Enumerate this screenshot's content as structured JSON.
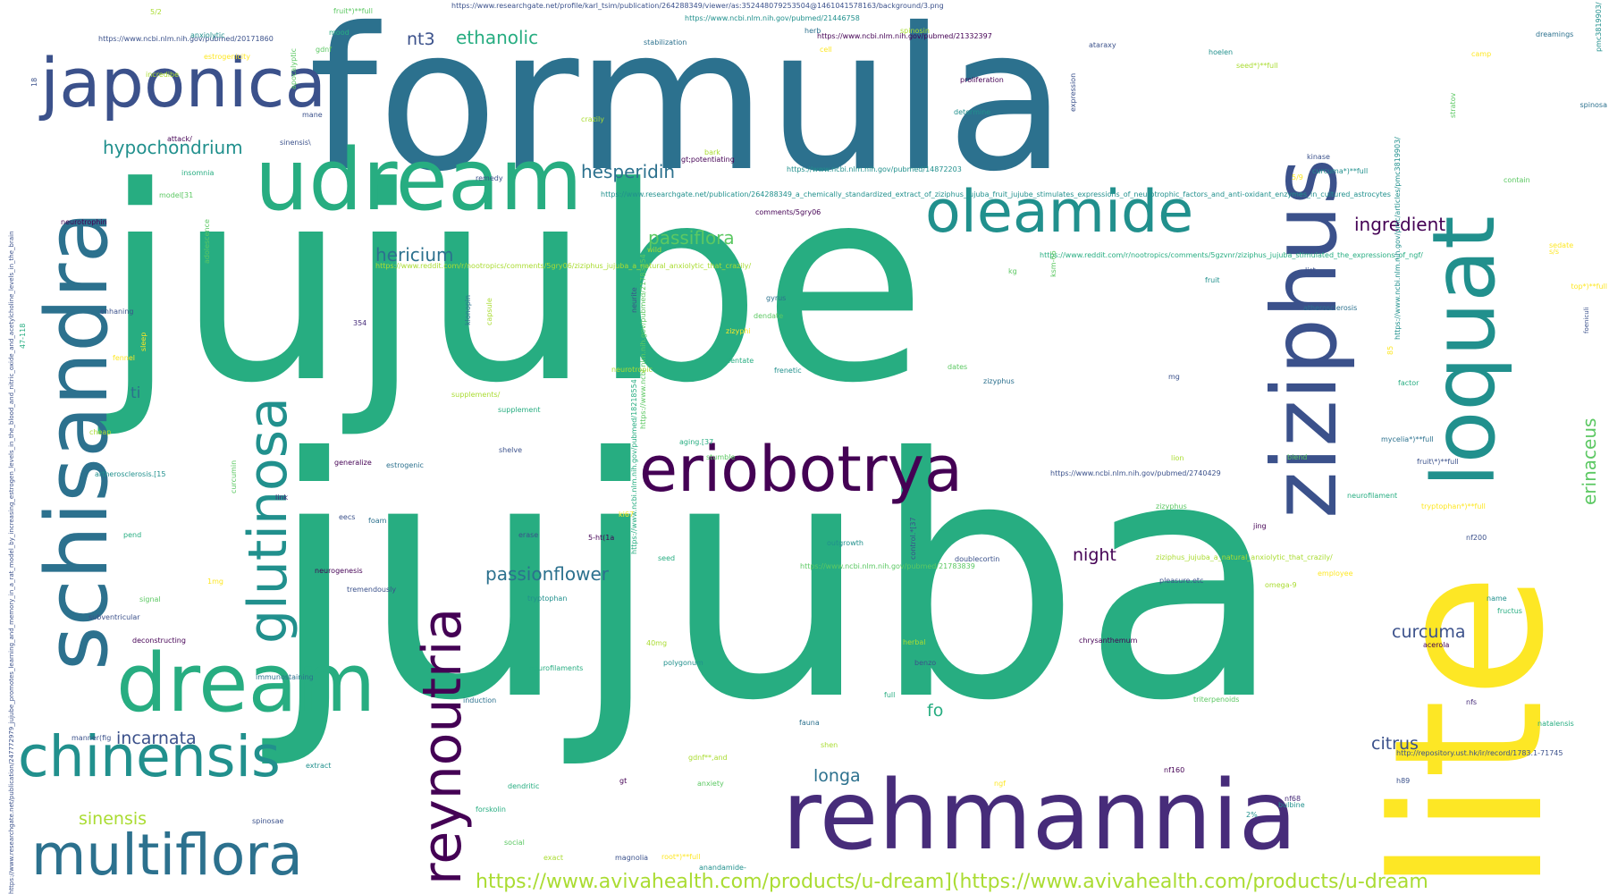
{
  "colors": {
    "background": "#ffffff",
    "palette": [
      "#440154",
      "#472c7a",
      "#3b518b",
      "#2c718e",
      "#21908d",
      "#27ad81",
      "#5cc863",
      "#aadc32",
      "#fde725"
    ]
  },
  "words": [
    {
      "text": "jujube"
    },
    {
      "text": "jujuba"
    },
    {
      "text": "formula"
    },
    {
      "text": "lite"
    },
    {
      "text": "ziziphus"
    },
    {
      "text": "loquat"
    },
    {
      "text": "schisandra"
    },
    {
      "text": "udream"
    },
    {
      "text": "japonica"
    },
    {
      "text": "rehmannia"
    },
    {
      "text": "eriobotrya"
    },
    {
      "text": "oleamide"
    },
    {
      "text": "reynoutria"
    },
    {
      "text": "glutinosa"
    },
    {
      "text": "dream"
    },
    {
      "text": "chinensis"
    },
    {
      "text": "multiflora"
    },
    {
      "text": "https://www.avivahealth.com/products/u-dream](https://www.avivahealth.com/products/u-dream"
    },
    {
      "text": "hypochondrium"
    },
    {
      "text": "passionflower"
    },
    {
      "text": "hesperidin"
    },
    {
      "text": "ethanolic"
    },
    {
      "text": "nt3"
    },
    {
      "text": "hericium"
    },
    {
      "text": "passiflora"
    },
    {
      "text": "ingredient"
    },
    {
      "text": "erinaceus"
    },
    {
      "text": "incarnata"
    },
    {
      "text": "sinensis"
    },
    {
      "text": "longa"
    },
    {
      "text": "curcuma"
    },
    {
      "text": "citrus"
    },
    {
      "text": "night"
    },
    {
      "text": "fo"
    },
    {
      "text": "ti"
    },
    {
      "text": "https://www.researchgate.net/profile/karl_tsim/publication/264288349/viewer/as:352448079253504@1461041578163/background/3.png"
    },
    {
      "text": "https://www.ncbi.nlm.nih.gov/pubmed/21446758"
    },
    {
      "text": "https://www.ncbi.nlm.nih.gov/pubmed/20171860"
    },
    {
      "text": "https://www.ncbi.nlm.nih.gov/pubmed/21332397"
    },
    {
      "text": "https://www.ncbi.nlm.nih.gov/pubmed/14872203"
    },
    {
      "text": "https://www.researchgate.net/publication/264288349_a_chemically_standardized_extract_of_ziziphus_jujuba_fruit_jujube_stimulates_expressions_of_neurotrophic_factors_and_anti-oxidant_enzymes_in_cultured_astrocytes"
    },
    {
      "text": "https://www.reddit.com/r/nootropics/comments/5gzvnr/ziziphus_jujuba_stimulated_the_expressions_of_ngf/"
    },
    {
      "text": "https://www.reddit.com/r/nootropics/comments/5gry06/ziziphus_jujuba_a_natural_anxiolytic_that_crazily/"
    },
    {
      "text": "https://www.ncbi.nlm.nih.gov/pubmed/2740429"
    },
    {
      "text": "https://www.ncbi.nlm.nih.gov/pubmed/21783839"
    },
    {
      "text": "ziziphus_jujuba_a_natural_anxiolytic_that_crazily/"
    },
    {
      "text": "http://repository.ust.hk/ir/record/1783.1-71745"
    },
    {
      "text": "https://www.ncbi.nlm.nih.gov/pmc/articles/pmc3819903/"
    },
    {
      "text": "https://www.ncbi.nlm.nih.gov/pubmed/18218554"
    },
    {
      "text": "https://www.ncbi.nlm.nih.gov/pubmed/21783854"
    },
    {
      "text": "https://www.researchgate.net/publication/247772979_jujube_promotes_learning_and_memory_in_a_rat_model_by_increasing_estrogen_levels_in_the_blood_and_nitric_oxide_and_acetylcholine_levels_in_the_brain"
    },
    {
      "text": "comments/5gry06"
    },
    {
      "text": "stabilization"
    },
    {
      "text": "anxiolytic"
    },
    {
      "text": "mood"
    },
    {
      "text": "gdnf"
    },
    {
      "text": "estrogenicity"
    },
    {
      "text": "incredibe"
    },
    {
      "text": "apocalyptic"
    },
    {
      "text": "fruit*)**full"
    },
    {
      "text": "herb"
    },
    {
      "text": "spinosin"
    },
    {
      "text": "cell"
    },
    {
      "text": "ataraxy"
    },
    {
      "text": "hoelen"
    },
    {
      "text": "seed*)**full"
    },
    {
      "text": "expression"
    },
    {
      "text": "proliferation"
    },
    {
      "text": "determine"
    },
    {
      "text": "mane"
    },
    {
      "text": "crazily"
    },
    {
      "text": "attack/"
    },
    {
      "text": "sinensis\\"
    },
    {
      "text": "insomnia"
    },
    {
      "text": "gt;potentiating"
    },
    {
      "text": "bark"
    },
    {
      "text": "remedy"
    },
    {
      "text": "model[31"
    },
    {
      "text": "neurotrophin"
    },
    {
      "text": "adolescence"
    },
    {
      "text": "wild"
    },
    {
      "text": "354"
    },
    {
      "text": "klonopin"
    },
    {
      "text": "capsule"
    },
    {
      "text": "neurite"
    },
    {
      "text": "gyrus"
    },
    {
      "text": "dendate"
    },
    {
      "text": "zizyphi"
    },
    {
      "text": "dentate"
    },
    {
      "text": "frenetic"
    },
    {
      "text": "dates"
    },
    {
      "text": "zizyphus"
    },
    {
      "text": "kg"
    },
    {
      "text": "ksm-66"
    },
    {
      "text": "fruit"
    },
    {
      "text": "list"
    },
    {
      "text": "atherosclerosis"
    },
    {
      "text": "top*)**full"
    },
    {
      "text": "sedate"
    },
    {
      "text": "stratov"
    },
    {
      "text": "kinase"
    },
    {
      "text": "curcuma*)**full"
    },
    {
      "text": "contain"
    },
    {
      "text": "dreamings"
    },
    {
      "text": "spinosa"
    },
    {
      "text": "camp"
    },
    {
      "text": "mg"
    },
    {
      "text": "fennel"
    },
    {
      "text": "sleep"
    },
    {
      "text": "enhaning"
    },
    {
      "text": "47-118"
    },
    {
      "text": "cheap"
    },
    {
      "text": "supplements/"
    },
    {
      "text": "supplement"
    },
    {
      "text": "shelve"
    },
    {
      "text": "generalize"
    },
    {
      "text": "estrogenic"
    },
    {
      "text": "artherosclerosis.[15"
    },
    {
      "text": "link"
    },
    {
      "text": "curcumin"
    },
    {
      "text": "eecs"
    },
    {
      "text": "foam"
    },
    {
      "text": "erase"
    },
    {
      "text": "5-ht(1a"
    },
    {
      "text": "ki67"
    },
    {
      "text": "stumble"
    },
    {
      "text": "aging.[37"
    },
    {
      "text": "pend"
    },
    {
      "text": "neurogenesis"
    },
    {
      "text": "tremendously"
    },
    {
      "text": "signal"
    },
    {
      "text": "subventricular"
    },
    {
      "text": "deconstructing"
    },
    {
      "text": "immunostaining"
    },
    {
      "text": "manner(fig"
    },
    {
      "text": "induction"
    },
    {
      "text": "tryptophan"
    },
    {
      "text": "seed"
    },
    {
      "text": "outgrowth"
    },
    {
      "text": "doublecortin"
    },
    {
      "text": "control.*[37"
    },
    {
      "text": "40mg"
    },
    {
      "text": "neurofilaments"
    },
    {
      "text": "polygonum"
    },
    {
      "text": "herbal"
    },
    {
      "text": "benzo"
    },
    {
      "text": "full"
    },
    {
      "text": "fauna"
    },
    {
      "text": "shen"
    },
    {
      "text": "gdnf**,and"
    },
    {
      "text": "gt"
    },
    {
      "text": "anxiety"
    },
    {
      "text": "magnolia"
    },
    {
      "text": "root*)**full"
    },
    {
      "text": "anandamide-"
    },
    {
      "text": "dendritic"
    },
    {
      "text": "forskolin"
    },
    {
      "text": "social"
    },
    {
      "text": "exact"
    },
    {
      "text": "extract"
    },
    {
      "text": "spinosae"
    },
    {
      "text": "ngf"
    },
    {
      "text": "nf160"
    },
    {
      "text": "nf68"
    },
    {
      "text": "bulbine"
    },
    {
      "text": "chrysanthemum"
    },
    {
      "text": "triterpenoids"
    },
    {
      "text": "nfs"
    },
    {
      "text": "natalensis"
    },
    {
      "text": "h89"
    },
    {
      "text": "acerola"
    },
    {
      "text": "fructus"
    },
    {
      "text": "name"
    },
    {
      "text": "pleasure.etc"
    },
    {
      "text": "omega-9"
    },
    {
      "text": "employee"
    },
    {
      "text": "nf200"
    },
    {
      "text": "jing"
    },
    {
      "text": "zizyphus"
    },
    {
      "text": "neurofilament"
    },
    {
      "text": "tryptophan*)**full"
    },
    {
      "text": "fruit\\*)**full"
    },
    {
      "text": "blend"
    },
    {
      "text": "mycelia*)**full"
    },
    {
      "text": "factor"
    },
    {
      "text": "lion"
    },
    {
      "text": "85"
    },
    {
      "text": "neurotropic"
    },
    {
      "text": "foeniculi"
    },
    {
      "text": "pmc3819903/"
    },
    {
      "text": "s/s"
    },
    {
      "text": "5/9"
    },
    {
      "text": "5/2"
    },
    {
      "text": "2%"
    },
    {
      "text": "18"
    },
    {
      "text": "1mg"
    },
    {
      "text": "5"
    }
  ]
}
